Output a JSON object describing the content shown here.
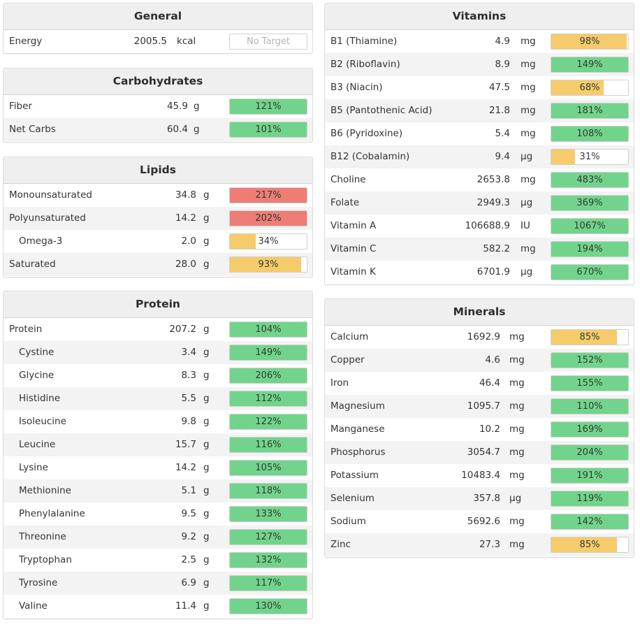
{
  "colors": {
    "green": "#72d48c",
    "yellow": "#f6cb6b",
    "red": "#ee7d76",
    "header_bg": "#efefef"
  },
  "general": {
    "title": "General",
    "rows": [
      {
        "name": "Energy",
        "amount": "2005.5",
        "unit": "kcal",
        "target": "No Target"
      }
    ]
  },
  "carbohydrates": {
    "title": "Carbohydrates",
    "rows": [
      {
        "name": "Fiber",
        "amount": "45.9",
        "unit": "g",
        "percent": "121%",
        "fill": 1.0,
        "status": "green"
      },
      {
        "name": "Net Carbs",
        "amount": "60.4",
        "unit": "g",
        "percent": "101%",
        "fill": 1.0,
        "status": "green"
      }
    ]
  },
  "lipids": {
    "title": "Lipids",
    "rows": [
      {
        "name": "Monounsaturated",
        "amount": "34.8",
        "unit": "g",
        "percent": "217%",
        "fill": 1.0,
        "status": "red"
      },
      {
        "name": "Polyunsaturated",
        "amount": "14.2",
        "unit": "g",
        "percent": "202%",
        "fill": 1.0,
        "status": "red"
      },
      {
        "name": "Omega-3",
        "amount": "2.0",
        "unit": "g",
        "percent": "34%",
        "fill": 0.34,
        "status": "yellow",
        "indent": true
      },
      {
        "name": "Saturated",
        "amount": "28.0",
        "unit": "g",
        "percent": "93%",
        "fill": 0.93,
        "status": "yellow"
      }
    ]
  },
  "protein": {
    "title": "Protein",
    "rows": [
      {
        "name": "Protein",
        "amount": "207.2",
        "unit": "g",
        "percent": "104%",
        "fill": 1.0,
        "status": "green"
      },
      {
        "name": "Cystine",
        "amount": "3.4",
        "unit": "g",
        "percent": "149%",
        "fill": 1.0,
        "status": "green",
        "indent": true
      },
      {
        "name": "Glycine",
        "amount": "8.3",
        "unit": "g",
        "percent": "206%",
        "fill": 1.0,
        "status": "green",
        "indent": true
      },
      {
        "name": "Histidine",
        "amount": "5.5",
        "unit": "g",
        "percent": "112%",
        "fill": 1.0,
        "status": "green",
        "indent": true
      },
      {
        "name": "Isoleucine",
        "amount": "9.8",
        "unit": "g",
        "percent": "122%",
        "fill": 1.0,
        "status": "green",
        "indent": true
      },
      {
        "name": "Leucine",
        "amount": "15.7",
        "unit": "g",
        "percent": "116%",
        "fill": 1.0,
        "status": "green",
        "indent": true
      },
      {
        "name": "Lysine",
        "amount": "14.2",
        "unit": "g",
        "percent": "105%",
        "fill": 1.0,
        "status": "green",
        "indent": true
      },
      {
        "name": "Methionine",
        "amount": "5.1",
        "unit": "g",
        "percent": "118%",
        "fill": 1.0,
        "status": "green",
        "indent": true
      },
      {
        "name": "Phenylalanine",
        "amount": "9.5",
        "unit": "g",
        "percent": "133%",
        "fill": 1.0,
        "status": "green",
        "indent": true
      },
      {
        "name": "Threonine",
        "amount": "9.2",
        "unit": "g",
        "percent": "127%",
        "fill": 1.0,
        "status": "green",
        "indent": true
      },
      {
        "name": "Tryptophan",
        "amount": "2.5",
        "unit": "g",
        "percent": "132%",
        "fill": 1.0,
        "status": "green",
        "indent": true
      },
      {
        "name": "Tyrosine",
        "amount": "6.9",
        "unit": "g",
        "percent": "117%",
        "fill": 1.0,
        "status": "green",
        "indent": true
      },
      {
        "name": "Valine",
        "amount": "11.4",
        "unit": "g",
        "percent": "130%",
        "fill": 1.0,
        "status": "green",
        "indent": true
      }
    ]
  },
  "vitamins": {
    "title": "Vitamins",
    "rows": [
      {
        "name": "B1 (Thiamine)",
        "amount": "4.9",
        "unit": "mg",
        "percent": "98%",
        "fill": 0.98,
        "status": "yellow"
      },
      {
        "name": "B2 (Riboflavin)",
        "amount": "8.9",
        "unit": "mg",
        "percent": "149%",
        "fill": 1.0,
        "status": "green"
      },
      {
        "name": "B3 (Niacin)",
        "amount": "47.5",
        "unit": "mg",
        "percent": "68%",
        "fill": 0.68,
        "status": "yellow"
      },
      {
        "name": "B5 (Pantothenic Acid)",
        "amount": "21.8",
        "unit": "mg",
        "percent": "181%",
        "fill": 1.0,
        "status": "green"
      },
      {
        "name": "B6 (Pyridoxine)",
        "amount": "5.4",
        "unit": "mg",
        "percent": "108%",
        "fill": 1.0,
        "status": "green"
      },
      {
        "name": "B12 (Cobalamin)",
        "amount": "9.4",
        "unit": "µg",
        "percent": "31%",
        "fill": 0.31,
        "status": "yellow"
      },
      {
        "name": "Choline",
        "amount": "2653.8",
        "unit": "mg",
        "percent": "483%",
        "fill": 1.0,
        "status": "green"
      },
      {
        "name": "Folate",
        "amount": "2949.3",
        "unit": "µg",
        "percent": "369%",
        "fill": 1.0,
        "status": "green"
      },
      {
        "name": "Vitamin A",
        "amount": "106688.9",
        "unit": "IU",
        "percent": "1067%",
        "fill": 1.0,
        "status": "green"
      },
      {
        "name": "Vitamin C",
        "amount": "582.2",
        "unit": "mg",
        "percent": "194%",
        "fill": 1.0,
        "status": "green"
      },
      {
        "name": "Vitamin K",
        "amount": "6701.9",
        "unit": "µg",
        "percent": "670%",
        "fill": 1.0,
        "status": "green"
      }
    ]
  },
  "minerals": {
    "title": "Minerals",
    "rows": [
      {
        "name": "Calcium",
        "amount": "1692.9",
        "unit": "mg",
        "percent": "85%",
        "fill": 0.85,
        "status": "yellow"
      },
      {
        "name": "Copper",
        "amount": "4.6",
        "unit": "mg",
        "percent": "152%",
        "fill": 1.0,
        "status": "green"
      },
      {
        "name": "Iron",
        "amount": "46.4",
        "unit": "mg",
        "percent": "155%",
        "fill": 1.0,
        "status": "green"
      },
      {
        "name": "Magnesium",
        "amount": "1095.7",
        "unit": "mg",
        "percent": "110%",
        "fill": 1.0,
        "status": "green"
      },
      {
        "name": "Manganese",
        "amount": "10.2",
        "unit": "mg",
        "percent": "169%",
        "fill": 1.0,
        "status": "green"
      },
      {
        "name": "Phosphorus",
        "amount": "3054.7",
        "unit": "mg",
        "percent": "204%",
        "fill": 1.0,
        "status": "green"
      },
      {
        "name": "Potassium",
        "amount": "10483.4",
        "unit": "mg",
        "percent": "191%",
        "fill": 1.0,
        "status": "green"
      },
      {
        "name": "Selenium",
        "amount": "357.8",
        "unit": "µg",
        "percent": "119%",
        "fill": 1.0,
        "status": "green"
      },
      {
        "name": "Sodium",
        "amount": "5692.6",
        "unit": "mg",
        "percent": "142%",
        "fill": 1.0,
        "status": "green"
      },
      {
        "name": "Zinc",
        "amount": "27.3",
        "unit": "mg",
        "percent": "85%",
        "fill": 0.85,
        "status": "yellow"
      }
    ]
  }
}
